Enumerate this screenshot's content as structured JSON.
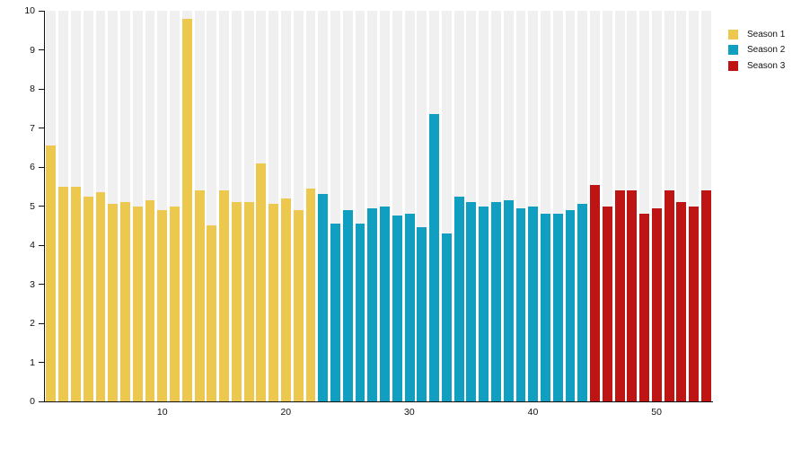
{
  "legend": {
    "items": [
      {
        "label": "Season 1",
        "color": "#EDC84F"
      },
      {
        "label": "Season 2",
        "color": "#109EC1"
      },
      {
        "label": "Season 3",
        "color": "#BE1414"
      }
    ]
  },
  "axes": {
    "y_ticks": [
      "0",
      "1",
      "2",
      "3",
      "4",
      "5",
      "6",
      "7",
      "8",
      "9",
      "10"
    ],
    "x_ticks": [
      "10",
      "20",
      "30",
      "40",
      "50"
    ]
  },
  "chart_data": {
    "type": "bar",
    "title": "",
    "xlabel": "",
    "ylabel": "",
    "ylim": [
      0,
      10
    ],
    "x_tick_positions": [
      10,
      20,
      30,
      40,
      50
    ],
    "total_bars": 54,
    "background_bars": true,
    "background_bar_value": 10,
    "background_bar_color": "#F0F0F0",
    "series": [
      {
        "name": "Season 1",
        "color": "#EDC84F",
        "episodes_start": 1,
        "values": [
          6.55,
          5.5,
          5.5,
          5.25,
          5.35,
          5.05,
          5.1,
          5.0,
          5.15,
          4.9,
          5.0,
          9.8,
          5.4,
          4.5,
          5.4,
          5.1,
          5.1,
          6.1,
          5.05,
          5.2,
          4.9,
          5.45
        ]
      },
      {
        "name": "Season 2",
        "color": "#109EC1",
        "episodes_start": 23,
        "values": [
          5.3,
          4.55,
          4.9,
          4.55,
          4.95,
          5.0,
          4.75,
          4.8,
          4.45,
          7.35,
          4.3,
          5.25,
          5.1,
          5.0,
          5.1,
          5.15,
          4.95,
          5.0,
          4.8,
          4.8,
          4.9,
          5.05
        ]
      },
      {
        "name": "Season 3",
        "color": "#BE1414",
        "episodes_start": 45,
        "values": [
          5.55,
          5.0,
          5.4,
          5.4,
          4.8,
          4.95,
          5.4,
          5.1,
          5.0,
          5.4
        ]
      }
    ]
  }
}
